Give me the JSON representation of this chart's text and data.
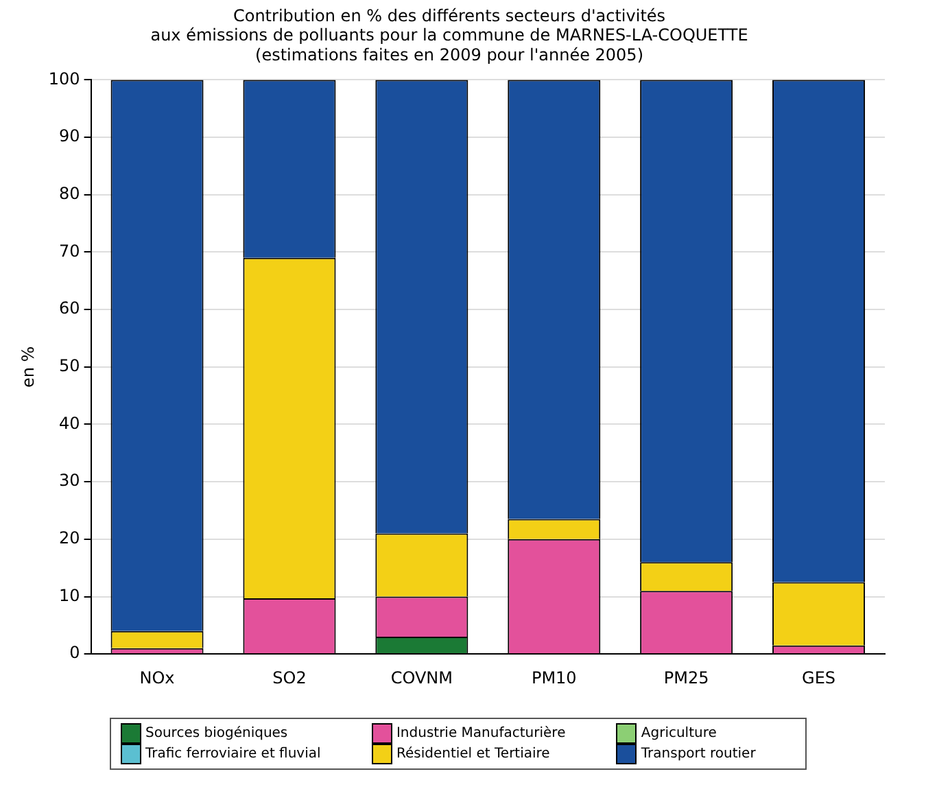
{
  "chart_data": {
    "type": "bar",
    "stacked": true,
    "title": [
      "Contribution en % des différents secteurs d'activités",
      "aux émissions de polluants pour la commune de MARNES-LA-COQUETTE",
      "(estimations faites en 2009 pour l'année 2005)"
    ],
    "ylabel": "en %",
    "categories": [
      "NOx",
      "SO2",
      "COVNM",
      "PM10",
      "PM25",
      "GES"
    ],
    "series": [
      {
        "name": "Sources biogéniques",
        "color": "#1b7a35",
        "values": [
          0,
          0,
          3,
          0,
          0,
          0
        ]
      },
      {
        "name": "Industrie Manufacturière",
        "color": "#e3519b",
        "values": [
          1,
          9.7,
          7,
          20,
          11,
          1.5
        ]
      },
      {
        "name": "Agriculture",
        "color": "#8ccf74",
        "values": [
          0,
          0,
          0,
          0,
          0,
          0
        ]
      },
      {
        "name": "Trafic ferroviaire et fluvial",
        "color": "#5bbfd1",
        "values": [
          0,
          0,
          0,
          0,
          0,
          0
        ]
      },
      {
        "name": "Résidentiel et Tertiaire",
        "color": "#f3d016",
        "values": [
          3,
          59.3,
          11,
          3.5,
          5,
          11
        ]
      },
      {
        "name": "Transport routier",
        "color": "#1a4f9c",
        "values": [
          96,
          31,
          79,
          76.5,
          84,
          87.5
        ]
      }
    ],
    "ylim": [
      0,
      100
    ],
    "yticks": [
      0,
      10,
      20,
      30,
      40,
      50,
      60,
      70,
      80,
      90,
      100
    ],
    "grid": "y",
    "legend": "bottom"
  }
}
